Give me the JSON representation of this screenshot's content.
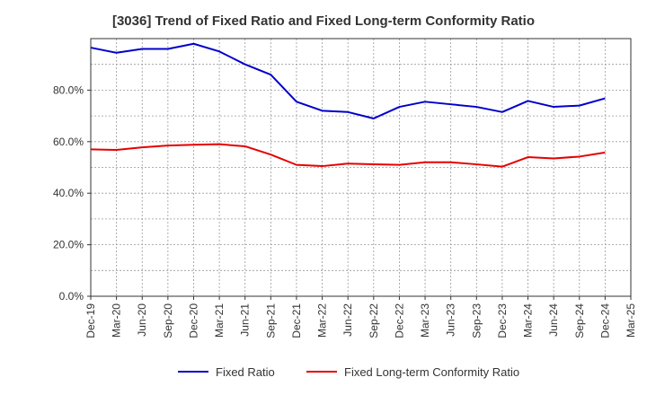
{
  "chart_data": {
    "type": "line",
    "title": "[3036]  Trend of Fixed Ratio and Fixed Long-term Conformity Ratio",
    "xlabel": "",
    "ylabel": "",
    "ylim": [
      0,
      100
    ],
    "yticks": [
      "0.0%",
      "20.0%",
      "40.0%",
      "60.0%",
      "80.0%"
    ],
    "ytick_values": [
      0,
      20,
      40,
      60,
      80
    ],
    "x": [
      "Dec-19",
      "Mar-20",
      "Jun-20",
      "Sep-20",
      "Dec-20",
      "Mar-21",
      "Jun-21",
      "Sep-21",
      "Dec-21",
      "Mar-22",
      "Jun-22",
      "Sep-22",
      "Dec-22",
      "Mar-23",
      "Jun-23",
      "Sep-23",
      "Dec-23",
      "Mar-24",
      "Jun-24",
      "Sep-24",
      "Dec-24",
      "Mar-25"
    ],
    "grid": true,
    "legend_position": "bottom",
    "series": [
      {
        "name": "Fixed Ratio",
        "color": "#0000cc",
        "values": [
          96.5,
          94.5,
          96.0,
          96.0,
          98.0,
          95.0,
          90.0,
          86.0,
          75.5,
          72.0,
          71.5,
          69.0,
          73.5,
          75.5,
          74.5,
          73.5,
          71.5,
          75.8,
          73.5,
          74.0,
          76.8,
          null
        ]
      },
      {
        "name": "Fixed Long-term Conformity Ratio",
        "color": "#e60000",
        "values": [
          57.0,
          56.8,
          57.8,
          58.5,
          58.8,
          59.0,
          58.2,
          55.0,
          51.0,
          50.5,
          51.5,
          51.2,
          51.0,
          52.0,
          52.0,
          51.2,
          50.3,
          54.0,
          53.5,
          54.2,
          55.8,
          null
        ]
      }
    ]
  }
}
